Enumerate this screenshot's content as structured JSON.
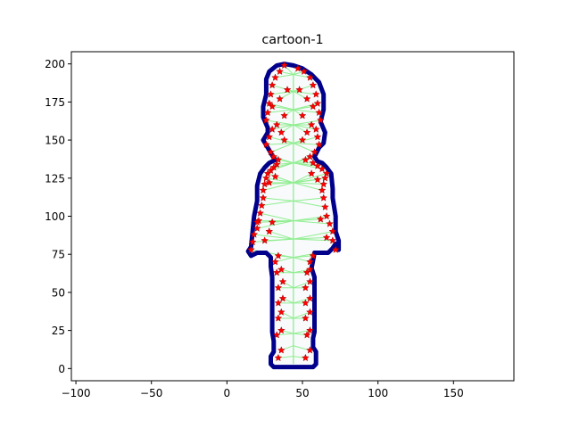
{
  "chart_data": {
    "type": "scatter",
    "title": "cartoon-1",
    "xlabel": "",
    "ylabel": "",
    "xlim": [
      -103,
      190
    ],
    "ylim": [
      -8,
      208
    ],
    "xticks": [
      -100,
      -50,
      0,
      50,
      100,
      150
    ],
    "yticks": [
      0,
      25,
      50,
      75,
      100,
      125,
      150,
      175,
      200
    ],
    "grid": false,
    "colors": {
      "outline": "#00008b",
      "fill": "#f8fafc",
      "skeleton": "#90ee90",
      "markers": "#ff0000"
    },
    "outline": [
      [
        38,
        1
      ],
      [
        57,
        1
      ],
      [
        59,
        3
      ],
      [
        59,
        11
      ],
      [
        57,
        14
      ],
      [
        57,
        20
      ],
      [
        58,
        24
      ],
      [
        58,
        60
      ],
      [
        56,
        66
      ],
      [
        57,
        71
      ],
      [
        58,
        76
      ],
      [
        67,
        76
      ],
      [
        70,
        79
      ],
      [
        72,
        82
      ],
      [
        74,
        78
      ],
      [
        74,
        84
      ],
      [
        72,
        90
      ],
      [
        72,
        100
      ],
      [
        70,
        112
      ],
      [
        70,
        118
      ],
      [
        69,
        128
      ],
      [
        66,
        132
      ],
      [
        63,
        135
      ],
      [
        60,
        136
      ],
      [
        58,
        139
      ],
      [
        61,
        145
      ],
      [
        64,
        148
      ],
      [
        65,
        155
      ],
      [
        62,
        162
      ],
      [
        64,
        170
      ],
      [
        64,
        180
      ],
      [
        61,
        188
      ],
      [
        56,
        193
      ],
      [
        50,
        197
      ],
      [
        44,
        199
      ],
      [
        38,
        200
      ],
      [
        33,
        199
      ],
      [
        28,
        195
      ],
      [
        26,
        190
      ],
      [
        26,
        180
      ],
      [
        24,
        172
      ],
      [
        24,
        165
      ],
      [
        27,
        158
      ],
      [
        27,
        155
      ],
      [
        24,
        150
      ],
      [
        27,
        145
      ],
      [
        30,
        140
      ],
      [
        32,
        137
      ],
      [
        28,
        135
      ],
      [
        25,
        132
      ],
      [
        22,
        128
      ],
      [
        20,
        120
      ],
      [
        20,
        110
      ],
      [
        18,
        100
      ],
      [
        17,
        90
      ],
      [
        16,
        80
      ],
      [
        14,
        77
      ],
      [
        16,
        74
      ],
      [
        20,
        76
      ],
      [
        26,
        76
      ],
      [
        29,
        73
      ],
      [
        29,
        67
      ],
      [
        30,
        60
      ],
      [
        30,
        24
      ],
      [
        31,
        18
      ],
      [
        31,
        11
      ],
      [
        29,
        8
      ],
      [
        29,
        3
      ],
      [
        31,
        1
      ],
      [
        38,
        1
      ]
    ],
    "skeleton": [
      [
        44,
        3
      ],
      [
        44,
        8
      ],
      [
        44,
        15
      ],
      [
        44,
        23
      ],
      [
        44,
        33
      ],
      [
        44,
        43
      ],
      [
        44,
        53
      ],
      [
        44,
        63
      ],
      [
        44,
        73
      ],
      [
        44,
        85
      ],
      [
        44,
        97
      ],
      [
        44,
        110
      ],
      [
        44,
        122
      ],
      [
        44,
        135
      ],
      [
        44,
        148
      ],
      [
        44,
        160
      ],
      [
        44,
        170
      ],
      [
        44,
        182
      ],
      [
        44,
        193
      ]
    ],
    "markers": [
      [
        34,
        7
      ],
      [
        36,
        12
      ],
      [
        52,
        7
      ],
      [
        55,
        12
      ],
      [
        33,
        22
      ],
      [
        36,
        25
      ],
      [
        53,
        22
      ],
      [
        55,
        25
      ],
      [
        34,
        33
      ],
      [
        36,
        37
      ],
      [
        52,
        33
      ],
      [
        55,
        37
      ],
      [
        34,
        43
      ],
      [
        37,
        46
      ],
      [
        52,
        43
      ],
      [
        55,
        46
      ],
      [
        34,
        53
      ],
      [
        37,
        57
      ],
      [
        52,
        53
      ],
      [
        55,
        57
      ],
      [
        33,
        63
      ],
      [
        36,
        65
      ],
      [
        53,
        63
      ],
      [
        55,
        65
      ],
      [
        32,
        70
      ],
      [
        34,
        74
      ],
      [
        55,
        70
      ],
      [
        57,
        74
      ],
      [
        16,
        78
      ],
      [
        17,
        83
      ],
      [
        18,
        88
      ],
      [
        20,
        92
      ],
      [
        21,
        97
      ],
      [
        22,
        102
      ],
      [
        23,
        107
      ],
      [
        24,
        112
      ],
      [
        20,
        96
      ],
      [
        25,
        84
      ],
      [
        28,
        90
      ],
      [
        30,
        96
      ],
      [
        72,
        78
      ],
      [
        70,
        84
      ],
      [
        70,
        90
      ],
      [
        68,
        95
      ],
      [
        66,
        100
      ],
      [
        65,
        106
      ],
      [
        64,
        112
      ],
      [
        62,
        98
      ],
      [
        66,
        86
      ],
      [
        24,
        117
      ],
      [
        25,
        121
      ],
      [
        26,
        125
      ],
      [
        27,
        128
      ],
      [
        29,
        130
      ],
      [
        31,
        132
      ],
      [
        33,
        134
      ],
      [
        28,
        122
      ],
      [
        32,
        126
      ],
      [
        63,
        117
      ],
      [
        64,
        121
      ],
      [
        65,
        125
      ],
      [
        66,
        128
      ],
      [
        63,
        131
      ],
      [
        60,
        133
      ],
      [
        57,
        135
      ],
      [
        60,
        124
      ],
      [
        56,
        128
      ],
      [
        26,
        147
      ],
      [
        29,
        142
      ],
      [
        31,
        139
      ],
      [
        34,
        137
      ],
      [
        28,
        152
      ],
      [
        30,
        157
      ],
      [
        33,
        160
      ],
      [
        36,
        155
      ],
      [
        38,
        150
      ],
      [
        61,
        147
      ],
      [
        58,
        142
      ],
      [
        55,
        139
      ],
      [
        52,
        137
      ],
      [
        60,
        152
      ],
      [
        59,
        157
      ],
      [
        56,
        160
      ],
      [
        53,
        155
      ],
      [
        50,
        150
      ],
      [
        26,
        163
      ],
      [
        27,
        168
      ],
      [
        28,
        174
      ],
      [
        29,
        180
      ],
      [
        30,
        186
      ],
      [
        32,
        191
      ],
      [
        35,
        195
      ],
      [
        38,
        199
      ],
      [
        30,
        172
      ],
      [
        35,
        177
      ],
      [
        38,
        166
      ],
      [
        62,
        163
      ],
      [
        61,
        168
      ],
      [
        60,
        174
      ],
      [
        59,
        180
      ],
      [
        57,
        186
      ],
      [
        55,
        191
      ],
      [
        51,
        195
      ],
      [
        47,
        197
      ],
      [
        57,
        172
      ],
      [
        53,
        177
      ],
      [
        50,
        166
      ],
      [
        40,
        183
      ],
      [
        48,
        183
      ]
    ]
  }
}
